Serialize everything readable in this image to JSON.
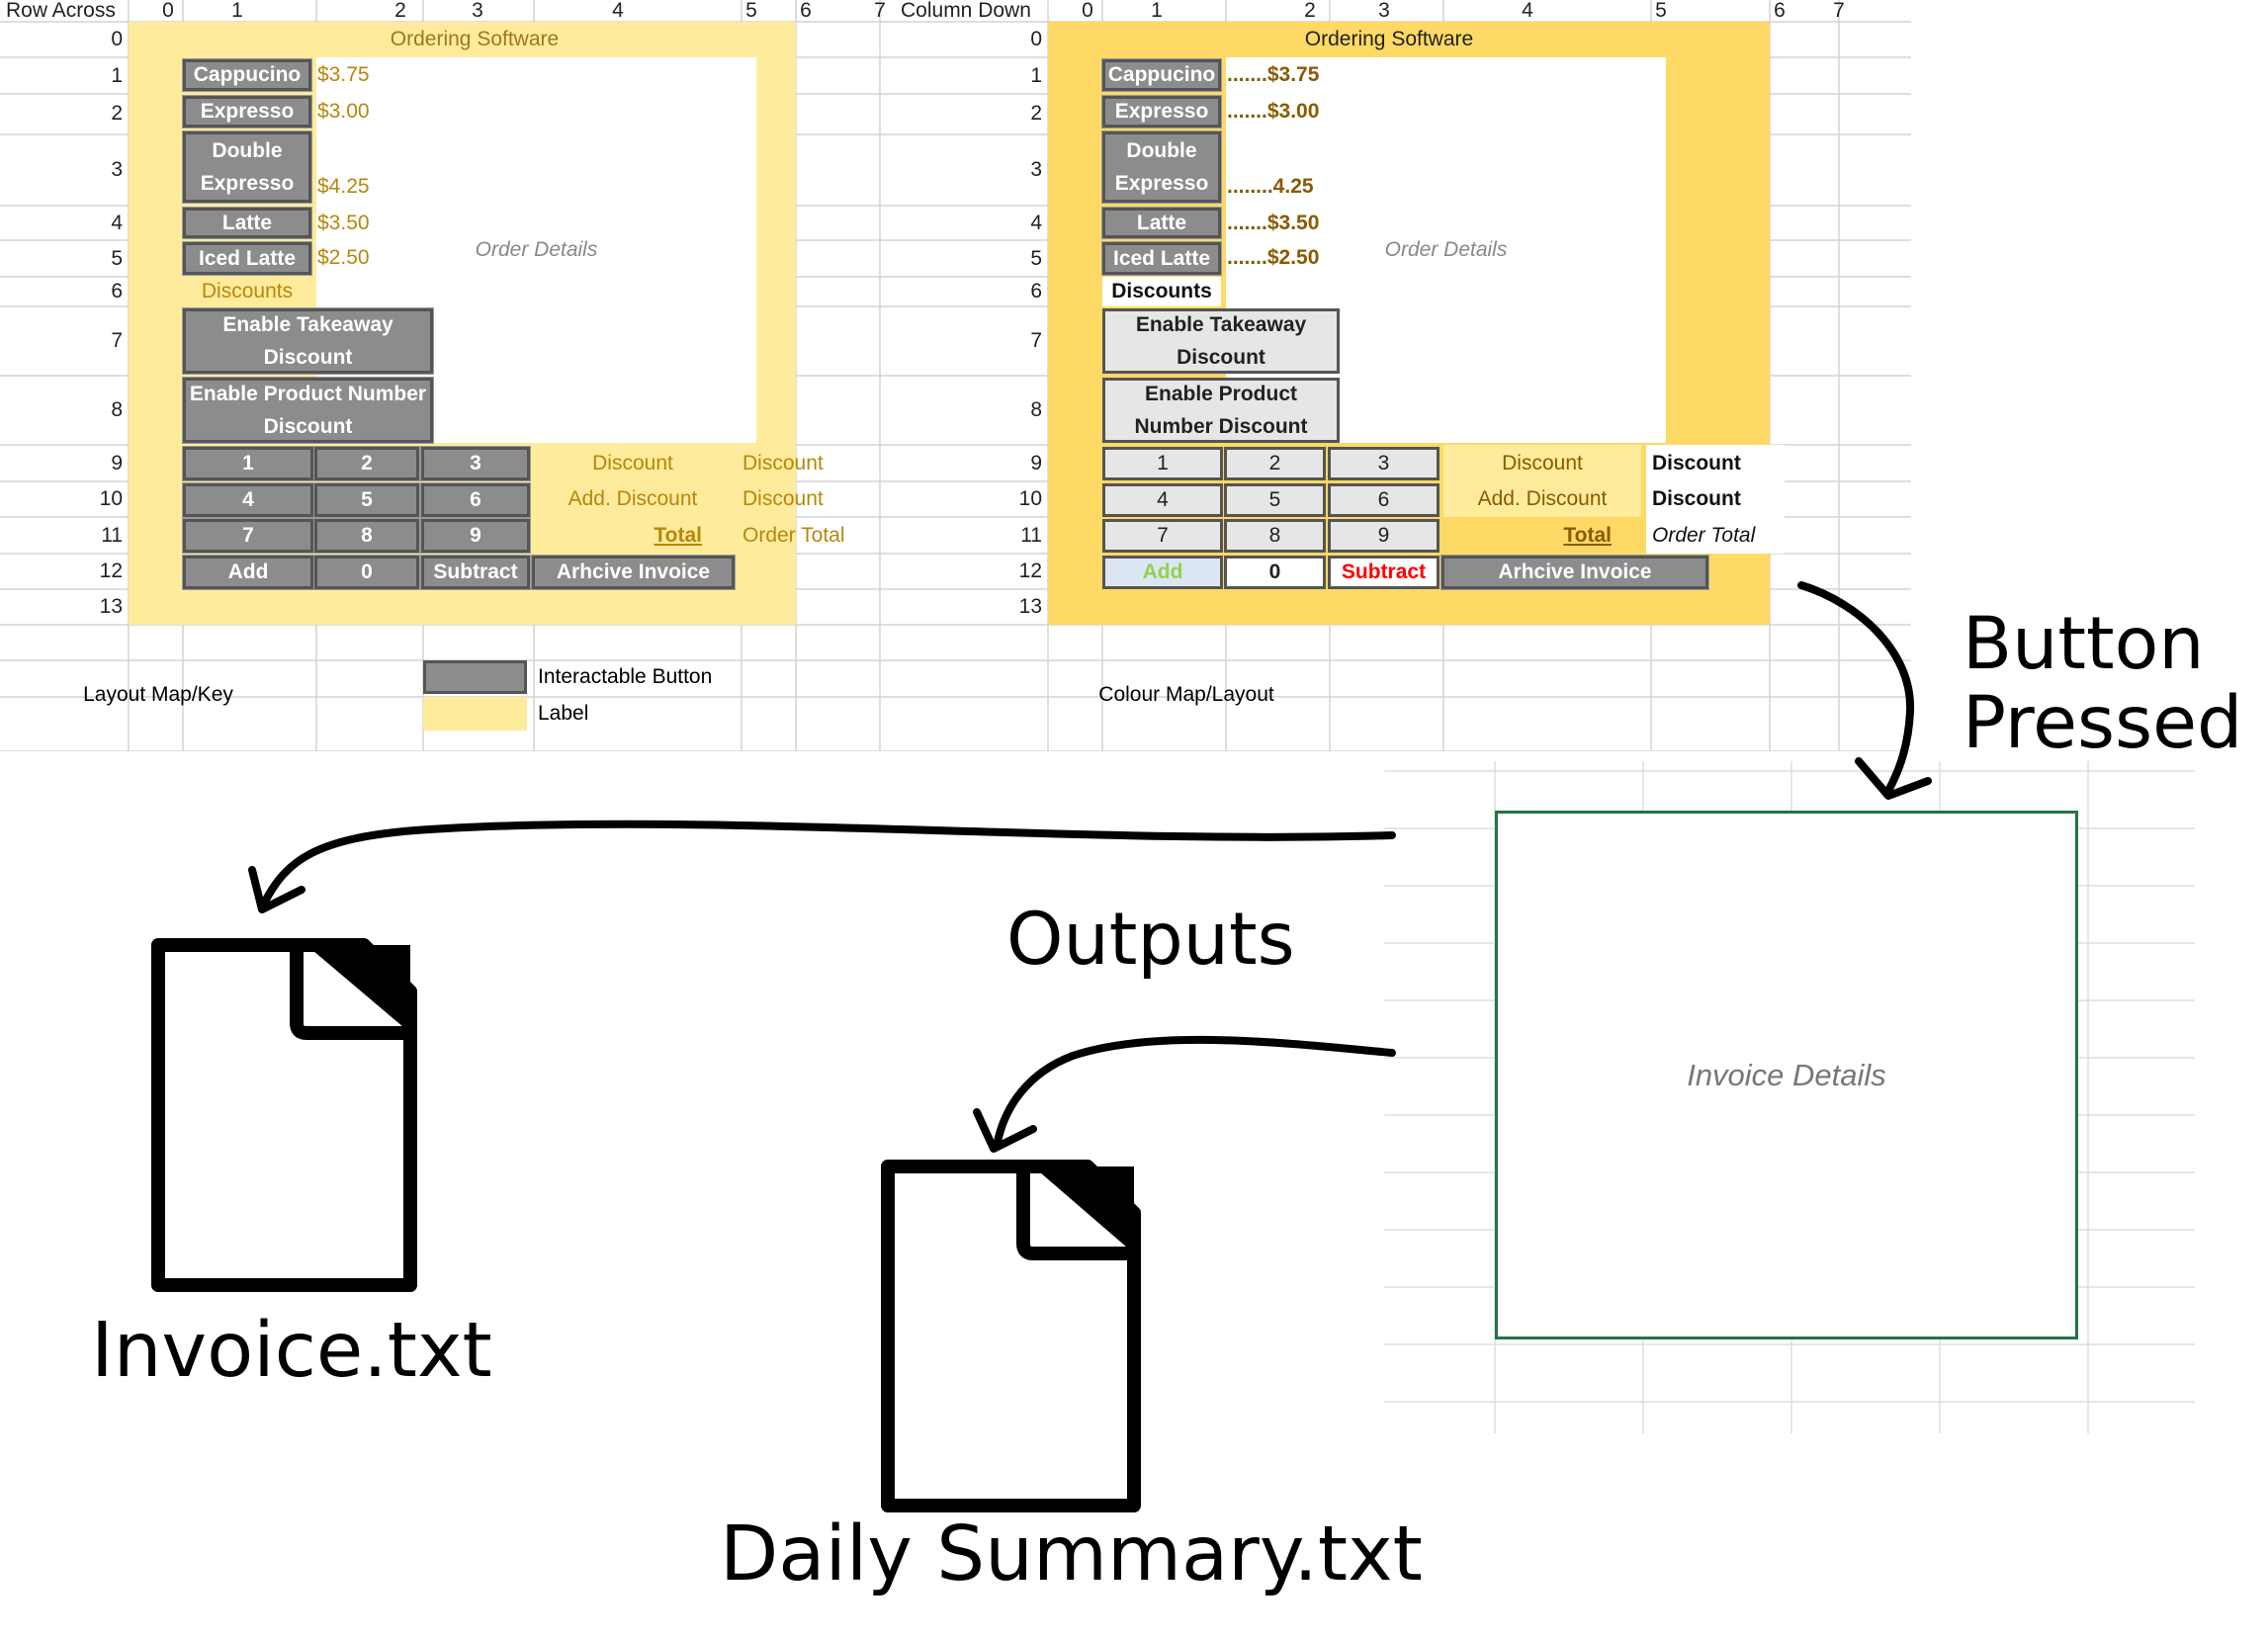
{
  "left_sheet": {
    "corner_label": "Row Across",
    "col_headers": [
      "0",
      "1",
      "2",
      "3",
      "4",
      "5",
      "6",
      "7"
    ],
    "row_headers": [
      "0",
      "1",
      "2",
      "3",
      "4",
      "5",
      "6",
      "7",
      "8",
      "9",
      "10",
      "11",
      "12",
      "13"
    ],
    "title": "Ordering Software",
    "menu": [
      {
        "name": "Cappucino",
        "price": "$3.75"
      },
      {
        "name": "Expresso",
        "price": "$3.00"
      },
      {
        "name": "Double Expresso",
        "price": "$4.25"
      },
      {
        "name": "Latte",
        "price": "$3.50"
      },
      {
        "name": "Iced Latte",
        "price": "$2.50"
      }
    ],
    "order_details": "Order Details",
    "discounts_label": "Discounts",
    "takeaway_button": "Enable Takeaway Discount",
    "product_button": "Enable Product Number Discount",
    "keypad": [
      "1",
      "2",
      "3",
      "4",
      "5",
      "6",
      "7",
      "8",
      "9"
    ],
    "add_button": "Add",
    "zero_button": "0",
    "subtract_button": "Subtract",
    "archive_button": "Arhcive Invoice",
    "discount_label": "Discount",
    "discount_value": "Discount",
    "add_discount_label": "Add. Discount",
    "add_discount_value": "Discount",
    "total_label": "Total",
    "total_value": "Order Total",
    "key_title": "Layout Map/Key",
    "key_button": "Interactable Button",
    "key_label": "Label"
  },
  "right_sheet": {
    "corner_label": "Column Down",
    "col_headers": [
      "0",
      "1",
      "2",
      "3",
      "4",
      "5",
      "6",
      "7"
    ],
    "row_headers": [
      "0",
      "1",
      "2",
      "3",
      "4",
      "5",
      "6",
      "7",
      "8",
      "9",
      "10",
      "11",
      "12",
      "13"
    ],
    "title": "Ordering Software",
    "menu": [
      {
        "name": "Cappucino",
        "price": ".......$3.75"
      },
      {
        "name": "Expresso",
        "price": ".......$3.00"
      },
      {
        "name": "Double Expresso",
        "price": "........4.25"
      },
      {
        "name": "Latte",
        "price": ".......$3.50"
      },
      {
        "name": "Iced Latte",
        "price": ".......$2.50"
      }
    ],
    "order_details": "Order Details",
    "discounts_label": "Discounts",
    "takeaway_button": "Enable Takeaway Discount",
    "product_button": "Enable Product Number Discount",
    "keypad": [
      "1",
      "2",
      "3",
      "4",
      "5",
      "6",
      "7",
      "8",
      "9"
    ],
    "add_button": "Add",
    "zero_button": "0",
    "subtract_button": "Subtract",
    "archive_button": "Arhcive Invoice",
    "discount_label": "Discount",
    "discount_value": "Discount",
    "add_discount_label": "Add. Discount",
    "add_discount_value": "Discount",
    "total_label": "Total",
    "total_value": "Order Total",
    "colour_title": "Colour Map/Layout"
  },
  "annotations": {
    "button_pressed": "Button Pressed",
    "outputs": "Outputs",
    "invoice_details": "Invoice Details",
    "file1": "Invoice.txt",
    "file2": "Daily Summary.txt"
  },
  "colors": {
    "light_yellow": "#ffeb9c",
    "gold_yellow": "#ffd966",
    "grey_button": "#8c8c8c",
    "light_button": "#e6e6e6",
    "label_gold": "#b8860b",
    "add_green": "#92d050",
    "subtract_red": "#ff0000",
    "invoice_border": "#217346"
  }
}
